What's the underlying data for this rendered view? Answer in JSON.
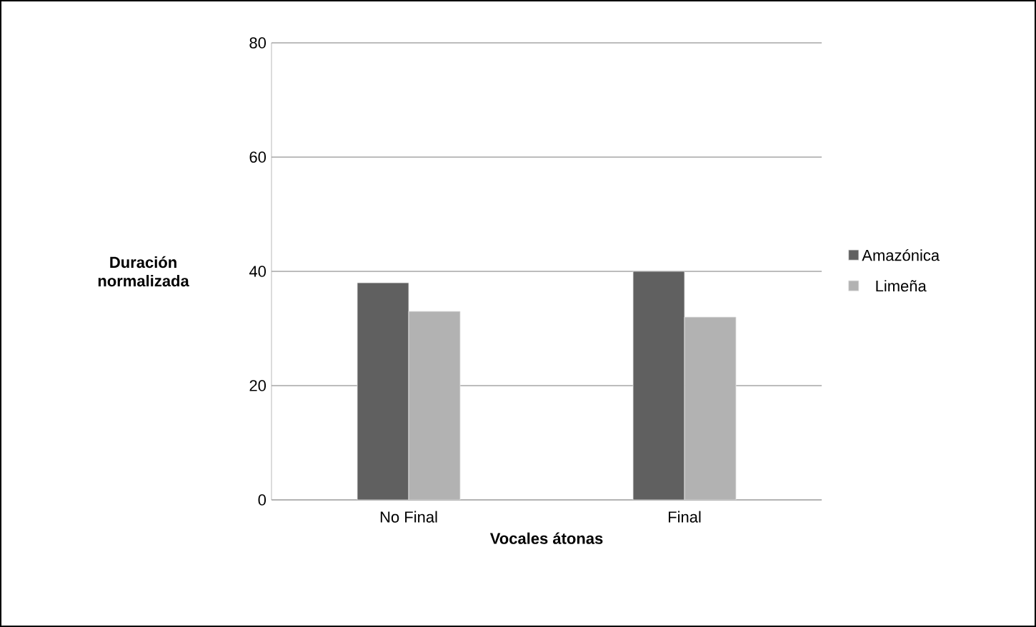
{
  "chart_data": {
    "type": "bar",
    "xlabel": "Vocales átonas",
    "ylabel": "Duración normalizada",
    "categories": [
      "No Final",
      "Final"
    ],
    "series": [
      {
        "name": "Amazónica",
        "color": "#606060",
        "values": [
          38,
          40
        ]
      },
      {
        "name": "Limeña",
        "color": "#b2b2b2",
        "values": [
          33,
          32
        ]
      }
    ],
    "ylim": [
      0,
      80
    ],
    "yticks": [
      0,
      20,
      40,
      60,
      80
    ],
    "grid": "y",
    "legend": "right"
  }
}
